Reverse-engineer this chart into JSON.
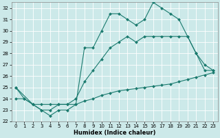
{
  "bg_color": "#cce9e9",
  "line_color": "#1a7a6e",
  "grid_color": "#ffffff",
  "xlabel": "Humidex (Indice chaleur)",
  "xmin": -0.5,
  "xmax": 23.5,
  "ymin": 22,
  "ymax": 32.5,
  "xticks": [
    0,
    1,
    2,
    3,
    4,
    5,
    6,
    7,
    8,
    9,
    10,
    11,
    12,
    13,
    14,
    15,
    16,
    17,
    18,
    19,
    20,
    21,
    22,
    23
  ],
  "yticks": [
    22,
    23,
    24,
    25,
    26,
    27,
    28,
    29,
    30,
    31,
    32
  ],
  "line1_x": [
    0,
    1,
    2,
    3,
    4,
    5,
    6,
    7,
    8,
    9,
    10,
    11,
    12,
    13,
    14,
    15,
    16,
    17,
    18,
    19,
    20,
    21,
    22,
    23
  ],
  "line1_y": [
    25.0,
    24.0,
    23.5,
    23.0,
    22.5,
    23.0,
    23.0,
    23.5,
    28.5,
    28.5,
    30.0,
    31.5,
    31.5,
    31.0,
    30.5,
    31.0,
    32.5,
    32.0,
    31.5,
    31.0,
    29.5,
    28.0,
    26.5,
    26.5
  ],
  "line2_x": [
    0,
    2,
    3,
    4,
    5,
    6,
    7,
    8,
    9,
    10,
    11,
    12,
    13,
    14,
    15,
    16,
    17,
    18,
    19,
    20,
    21,
    22,
    23
  ],
  "line2_y": [
    25.0,
    23.5,
    23.0,
    23.0,
    23.5,
    23.5,
    24.0,
    25.5,
    26.5,
    27.5,
    28.5,
    29.0,
    29.5,
    29.0,
    29.5,
    29.5,
    29.5,
    29.5,
    29.5,
    29.5,
    28.0,
    27.0,
    26.5
  ],
  "line3_x": [
    0,
    1,
    2,
    3,
    4,
    5,
    6,
    7,
    8,
    9,
    10,
    11,
    12,
    13,
    14,
    15,
    16,
    17,
    18,
    19,
    20,
    21,
    22,
    23
  ],
  "line3_y": [
    24.0,
    24.0,
    23.5,
    23.5,
    23.5,
    23.5,
    23.5,
    23.5,
    23.8,
    24.0,
    24.3,
    24.5,
    24.7,
    24.8,
    24.9,
    25.0,
    25.1,
    25.2,
    25.3,
    25.5,
    25.7,
    25.9,
    26.1,
    26.3
  ]
}
